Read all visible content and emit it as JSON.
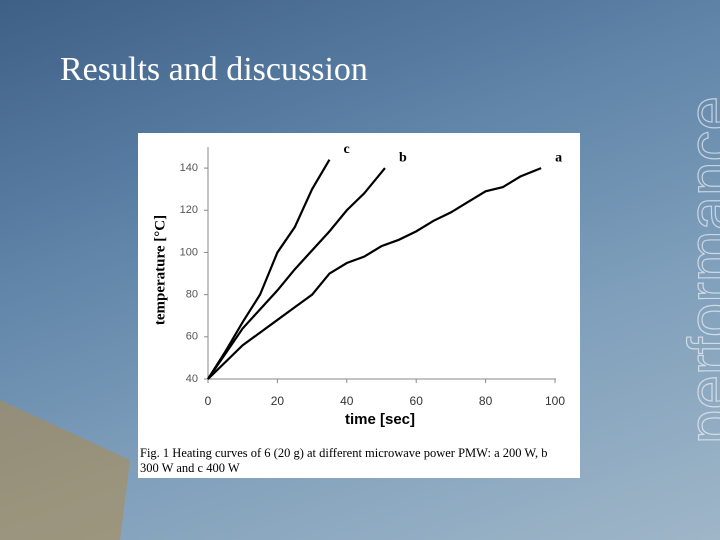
{
  "slide_title": "Results and discussion",
  "watermark": "performance",
  "chart_data": {
    "type": "line",
    "xlabel": "time [sec]",
    "ylabel": "temperature [°C]",
    "caption": "Fig. 1  Heating curves of 6 (20 g) at different microwave power PMW: a 200 W, b 300 W and c 400 W",
    "xlim": [
      0,
      100
    ],
    "xticks": [
      0,
      20,
      40,
      60,
      80,
      100
    ],
    "ylim": [
      40,
      150
    ],
    "yticks": [
      40,
      60,
      80,
      100,
      120,
      140
    ],
    "series": [
      {
        "name": "a",
        "color": "#000000",
        "x": [
          0,
          5,
          10,
          15,
          20,
          25,
          30,
          35,
          40,
          45,
          50,
          55,
          60,
          65,
          70,
          75,
          80,
          85,
          90,
          96
        ],
        "values": [
          40,
          48,
          56,
          62,
          68,
          74,
          80,
          90,
          95,
          98,
          103,
          106,
          110,
          115,
          119,
          124,
          129,
          131,
          136,
          140
        ]
      },
      {
        "name": "b",
        "color": "#000000",
        "x": [
          0,
          5,
          10,
          15,
          20,
          25,
          30,
          35,
          40,
          45,
          51
        ],
        "values": [
          40,
          52,
          64,
          73,
          82,
          92,
          101,
          110,
          120,
          128,
          140
        ]
      },
      {
        "name": "c",
        "color": "#000000",
        "x": [
          0,
          5,
          10,
          15,
          20,
          25,
          30,
          35
        ],
        "values": [
          40,
          53,
          67,
          80,
          100,
          112,
          130,
          144
        ]
      }
    ]
  }
}
